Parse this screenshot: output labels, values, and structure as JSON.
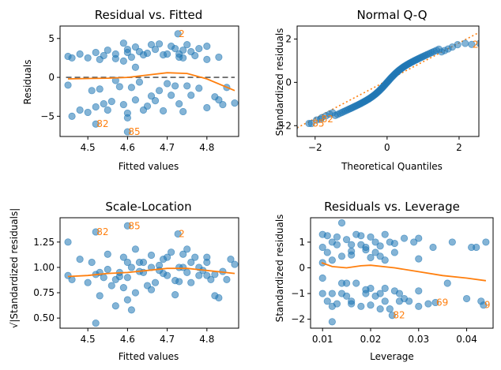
{
  "chart_data": [
    {
      "type": "scatter",
      "title": "Residual vs. Fitted",
      "xlabel": "Fitted values",
      "ylabel": "Residuals",
      "xlim": [
        4.43,
        4.88
      ],
      "ylim": [
        -7.6,
        6.6
      ],
      "xticks": [
        4.5,
        4.6,
        4.7,
        4.8
      ],
      "xtick_labels": [
        "4.5",
        "4.6",
        "4.7",
        "4.8"
      ],
      "yticks": [
        -5,
        0,
        5
      ],
      "ytick_labels": [
        "−5",
        "0",
        "5"
      ],
      "points": [
        [
          4.45,
          2.7
        ],
        [
          4.46,
          2.5
        ],
        [
          4.48,
          3.0
        ],
        [
          4.5,
          2.5
        ],
        [
          4.52,
          3.2
        ],
        [
          4.53,
          2.3
        ],
        [
          4.54,
          2.8
        ],
        [
          4.55,
          3.5
        ],
        [
          4.57,
          2.4
        ],
        [
          4.59,
          4.4
        ],
        [
          4.6,
          3.2
        ],
        [
          4.61,
          2.6
        ],
        [
          4.62,
          3.9
        ],
        [
          4.63,
          3.3
        ],
        [
          4.64,
          2.9
        ],
        [
          4.65,
          3.1
        ],
        [
          4.66,
          4.2
        ],
        [
          4.67,
          3.6
        ],
        [
          4.69,
          2.9
        ],
        [
          4.7,
          3.0
        ],
        [
          4.71,
          4.0
        ],
        [
          4.72,
          3.7
        ],
        [
          4.73,
          2.6
        ],
        [
          4.74,
          3.5
        ],
        [
          4.75,
          4.2
        ],
        [
          4.76,
          3.3
        ],
        [
          4.77,
          2.8
        ],
        [
          4.78,
          3.7
        ],
        [
          4.8,
          4.0
        ],
        [
          4.83,
          2.6
        ],
        [
          4.57,
          3.0
        ],
        [
          4.6,
          3.6
        ],
        [
          4.59,
          2.1
        ],
        [
          4.74,
          2.5
        ],
        [
          4.68,
          4.3
        ],
        [
          4.62,
          1.3
        ],
        [
          4.73,
          3.0
        ],
        [
          4.8,
          2.3
        ],
        [
          4.45,
          -1.0
        ],
        [
          4.46,
          -5.0
        ],
        [
          4.48,
          -4.2
        ],
        [
          4.5,
          -4.5
        ],
        [
          4.51,
          -1.7
        ],
        [
          4.53,
          -1.5
        ],
        [
          4.54,
          -3.4
        ],
        [
          4.55,
          -4.2
        ],
        [
          4.56,
          -3.1
        ],
        [
          4.57,
          -0.4
        ],
        [
          4.58,
          -1.2
        ],
        [
          4.59,
          -3.5
        ],
        [
          4.6,
          -4.6
        ],
        [
          4.61,
          -1.3
        ],
        [
          4.62,
          -2.9
        ],
        [
          4.63,
          -0.6
        ],
        [
          4.64,
          -4.2
        ],
        [
          4.65,
          -3.7
        ],
        [
          4.66,
          -2.4
        ],
        [
          4.67,
          -3.0
        ],
        [
          4.68,
          -1.7
        ],
        [
          4.69,
          -4.3
        ],
        [
          4.7,
          -0.8
        ],
        [
          4.71,
          -2.3
        ],
        [
          4.72,
          -1.1
        ],
        [
          4.73,
          -3.4
        ],
        [
          4.74,
          -4.4
        ],
        [
          4.75,
          -1.1
        ],
        [
          4.76,
          -2.3
        ],
        [
          4.78,
          -1.4
        ],
        [
          4.8,
          -3.9
        ],
        [
          4.82,
          -2.5
        ],
        [
          4.83,
          -2.9
        ],
        [
          4.84,
          -3.5
        ],
        [
          4.85,
          -1.3
        ],
        [
          4.87,
          -3.3
        ],
        [
          4.52,
          -3.8
        ],
        [
          4.6,
          -5.2
        ]
      ],
      "outliers": [
        {
          "x": 4.727,
          "y": 5.6,
          "label": "2"
        },
        {
          "x": 4.52,
          "y": -6.0,
          "label": "82"
        },
        {
          "x": 4.6,
          "y": -7.0,
          "label": "85"
        }
      ],
      "reference_line": {
        "y": 0,
        "style": "dashed",
        "color": "#595959"
      },
      "smooth": {
        "x": [
          4.45,
          4.5,
          4.55,
          4.6,
          4.65,
          4.7,
          4.75,
          4.8,
          4.87
        ],
        "y": [
          -0.2,
          -0.15,
          -0.1,
          0.0,
          0.3,
          0.6,
          0.5,
          -0.2,
          -1.7
        ]
      },
      "grid": false
    },
    {
      "type": "scatter",
      "title": "Normal Q-Q",
      "xlabel": "Theoretical Quantiles",
      "ylabel": "Standardized residuals",
      "xlim": [
        -2.5,
        2.55
      ],
      "ylim": [
        -2.5,
        2.6
      ],
      "xticks": [
        -2,
        0,
        2
      ],
      "xtick_labels": [
        "−2",
        "0",
        "2"
      ],
      "yticks": [
        -2,
        0,
        2
      ],
      "ytick_labels": [
        "−2",
        "0",
        "2"
      ],
      "reference_line": {
        "x": [
          -2.5,
          2.55
        ],
        "y": [
          -2.1,
          2.3
        ],
        "style": "dotted",
        "color": "#ff7f0e"
      },
      "outliers": [
        {
          "x": 2.35,
          "y": 1.75,
          "label": "2"
        },
        {
          "x": -2.1,
          "y": -1.9,
          "label": "85"
        },
        {
          "x": -1.85,
          "y": -1.7,
          "label": "82"
        }
      ],
      "grid": false
    },
    {
      "type": "scatter",
      "title": "Scale-Location",
      "xlabel": "Fitted values",
      "ylabel": "√|Standardized residuals|",
      "xlim": [
        4.43,
        4.88
      ],
      "ylim": [
        0.4,
        1.49
      ],
      "xticks": [
        4.5,
        4.6,
        4.7,
        4.8
      ],
      "xtick_labels": [
        "4.5",
        "4.6",
        "4.7",
        "4.8"
      ],
      "yticks": [
        0.5,
        0.75,
        1.0,
        1.25
      ],
      "ytick_labels": [
        "0.50",
        "0.75",
        "1.00",
        "1.25"
      ],
      "points": [
        [
          4.45,
          1.25
        ],
        [
          4.45,
          0.92
        ],
        [
          4.46,
          0.88
        ],
        [
          4.48,
          1.08
        ],
        [
          4.5,
          0.85
        ],
        [
          4.51,
          1.05
        ],
        [
          4.52,
          0.93
        ],
        [
          4.53,
          0.95
        ],
        [
          4.54,
          0.9
        ],
        [
          4.55,
          1.13
        ],
        [
          4.56,
          0.82
        ],
        [
          4.57,
          0.62
        ],
        [
          4.58,
          0.91
        ],
        [
          4.59,
          1.1
        ],
        [
          4.59,
          0.8
        ],
        [
          4.6,
          0.9
        ],
        [
          4.61,
          1.0
        ],
        [
          4.62,
          0.75
        ],
        [
          4.63,
          1.05
        ],
        [
          4.64,
          0.95
        ],
        [
          4.65,
          0.82
        ],
        [
          4.66,
          1.12
        ],
        [
          4.67,
          0.85
        ],
        [
          4.68,
          0.97
        ],
        [
          4.69,
          1.08
        ],
        [
          4.7,
          0.92
        ],
        [
          4.71,
          1.15
        ],
        [
          4.72,
          0.87
        ],
        [
          4.73,
          1.0
        ],
        [
          4.74,
          1.13
        ],
        [
          4.75,
          0.95
        ],
        [
          4.76,
          0.85
        ],
        [
          4.77,
          1.1
        ],
        [
          4.78,
          0.92
        ],
        [
          4.79,
          0.97
        ],
        [
          4.8,
          1.05
        ],
        [
          4.81,
          0.88
        ],
        [
          4.82,
          0.93
        ],
        [
          4.83,
          0.7
        ],
        [
          4.84,
          0.96
        ],
        [
          4.85,
          0.88
        ],
        [
          4.86,
          1.08
        ],
        [
          4.87,
          1.03
        ],
        [
          4.52,
          0.45
        ],
        [
          4.53,
          0.72
        ],
        [
          4.55,
          0.98
        ],
        [
          4.58,
          0.95
        ],
        [
          4.6,
          0.68
        ],
        [
          4.61,
          0.58
        ],
        [
          4.62,
          1.18
        ],
        [
          4.64,
          1.05
        ],
        [
          4.66,
          0.78
        ],
        [
          4.68,
          1.02
        ],
        [
          4.7,
          1.1
        ],
        [
          4.72,
          0.73
        ],
        [
          4.74,
          1.0
        ],
        [
          4.75,
          1.18
        ],
        [
          4.78,
          1.0
        ],
        [
          4.8,
          0.92
        ],
        [
          4.82,
          0.72
        ],
        [
          4.57,
          0.88
        ],
        [
          4.63,
          0.96
        ],
        [
          4.69,
          0.94
        ],
        [
          4.73,
          0.86
        ],
        [
          4.76,
          1.05
        ],
        [
          4.8,
          1.1
        ],
        [
          4.66,
          1.0
        ],
        [
          4.6,
          1.05
        ]
      ],
      "outliers": [
        {
          "x": 4.52,
          "y": 1.35,
          "label": "82"
        },
        {
          "x": 4.6,
          "y": 1.41,
          "label": "85"
        },
        {
          "x": 4.727,
          "y": 1.33,
          "label": "2"
        }
      ],
      "smooth": {
        "x": [
          4.45,
          4.5,
          4.55,
          4.6,
          4.65,
          4.7,
          4.75,
          4.8,
          4.87
        ],
        "y": [
          0.91,
          0.92,
          0.94,
          0.95,
          0.97,
          0.99,
          0.99,
          0.97,
          0.94
        ]
      },
      "grid": false
    },
    {
      "type": "scatter",
      "title": "Residuals vs. Leverage",
      "xlabel": "Leverage",
      "ylabel": "Standardized residuals",
      "xlim": [
        0.0075,
        0.0455
      ],
      "ylim": [
        -2.35,
        1.95
      ],
      "xticks": [
        0.01,
        0.02,
        0.03,
        0.04
      ],
      "xtick_labels": [
        "0.01",
        "0.02",
        "0.03",
        "0.04"
      ],
      "yticks": [
        -2,
        -1,
        0,
        1
      ],
      "ytick_labels": [
        "−2",
        "−1",
        "0",
        "1"
      ],
      "points": [
        [
          0.01,
          1.3
        ],
        [
          0.011,
          1.25
        ],
        [
          0.012,
          1.0
        ],
        [
          0.013,
          1.2
        ],
        [
          0.014,
          1.75
        ],
        [
          0.015,
          1.1
        ],
        [
          0.016,
          0.9
        ],
        [
          0.017,
          1.3
        ],
        [
          0.018,
          1.25
        ],
        [
          0.019,
          0.8
        ],
        [
          0.02,
          1.2
        ],
        [
          0.021,
          1.0
        ],
        [
          0.022,
          0.85
        ],
        [
          0.023,
          1.3
        ],
        [
          0.024,
          1.0
        ],
        [
          0.025,
          0.6
        ],
        [
          0.027,
          1.15
        ],
        [
          0.029,
          1.0
        ],
        [
          0.03,
          1.15
        ],
        [
          0.033,
          0.8
        ],
        [
          0.037,
          1.0
        ],
        [
          0.041,
          0.8
        ],
        [
          0.042,
          0.8
        ],
        [
          0.01,
          0.8
        ],
        [
          0.011,
          0.6
        ],
        [
          0.012,
          0.3
        ],
        [
          0.014,
          0.45
        ],
        [
          0.016,
          0.5
        ],
        [
          0.018,
          0.9
        ],
        [
          0.02,
          0.4
        ],
        [
          0.022,
          0.45
        ],
        [
          0.025,
          0.95
        ],
        [
          0.03,
          0.35
        ],
        [
          0.044,
          1.0
        ],
        [
          0.01,
          0.2
        ],
        [
          0.013,
          0.9
        ],
        [
          0.016,
          0.65
        ],
        [
          0.019,
          0.7
        ],
        [
          0.021,
          0.6
        ],
        [
          0.023,
          0.3
        ],
        [
          0.01,
          -1.0
        ],
        [
          0.011,
          -1.3
        ],
        [
          0.012,
          -1.0
        ],
        [
          0.013,
          -1.4
        ],
        [
          0.014,
          -0.6
        ],
        [
          0.015,
          -1.1
        ],
        [
          0.016,
          -1.3
        ],
        [
          0.017,
          -0.6
        ],
        [
          0.018,
          -1.5
        ],
        [
          0.019,
          -1.0
        ],
        [
          0.02,
          -0.8
        ],
        [
          0.021,
          -1.1
        ],
        [
          0.022,
          -1.0
        ],
        [
          0.023,
          -1.3
        ],
        [
          0.024,
          -1.6
        ],
        [
          0.025,
          -0.9
        ],
        [
          0.026,
          -1.0
        ],
        [
          0.027,
          -1.2
        ],
        [
          0.028,
          -1.3
        ],
        [
          0.03,
          -1.5
        ],
        [
          0.032,
          -1.4
        ],
        [
          0.036,
          -0.6
        ],
        [
          0.01,
          -0.4
        ],
        [
          0.012,
          -1.5
        ],
        [
          0.014,
          -1.0
        ],
        [
          0.016,
          -1.4
        ],
        [
          0.019,
          -0.85
        ],
        [
          0.02,
          -1.45
        ],
        [
          0.023,
          -0.8
        ],
        [
          0.026,
          -1.3
        ],
        [
          0.03,
          -0.9
        ],
        [
          0.04,
          -1.2
        ],
        [
          0.043,
          -1.3
        ],
        [
          0.012,
          -2.1
        ],
        [
          0.015,
          -0.6
        ],
        [
          0.022,
          -1.6
        ]
      ],
      "outliers": [
        {
          "x": 0.0245,
          "y": -1.85,
          "label": "82"
        },
        {
          "x": 0.0335,
          "y": -1.35,
          "label": "69"
        },
        {
          "x": 0.0435,
          "y": -1.45,
          "label": "9"
        }
      ],
      "smooth": {
        "x": [
          0.0098,
          0.012,
          0.015,
          0.018,
          0.02,
          0.025,
          0.03,
          0.035,
          0.04,
          0.044
        ],
        "y": [
          0.2,
          0.05,
          0.0,
          0.08,
          0.1,
          0.0,
          -0.15,
          -0.3,
          -0.4,
          -0.5
        ]
      },
      "grid": false
    }
  ],
  "colors": {
    "points": "#1f77b4",
    "smooth": "#ff7f0e",
    "outlier_label": "#ff7f0e",
    "reference": "#595959"
  }
}
